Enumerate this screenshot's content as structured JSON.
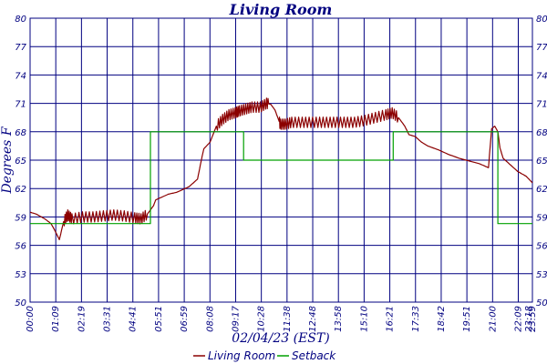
{
  "chart_data": {
    "type": "line",
    "title": "Living Room",
    "xlabel": "02/04/23 (EST)",
    "ylabel": "Degrees F",
    "ylim": [
      50,
      80
    ],
    "yticks": [
      50,
      53,
      56,
      59,
      62,
      65,
      68,
      71,
      74,
      77,
      80
    ],
    "ytick_labels": [
      "50",
      "53",
      "56",
      "59",
      "62",
      "65",
      "68",
      "71",
      "74",
      "77",
      "80"
    ],
    "xtick_labels": [
      "00:00",
      "01:09",
      "02:19",
      "03:31",
      "04:41",
      "05:51",
      "06:59",
      "08:08",
      "09:17",
      "10:28",
      "11:38",
      "12:48",
      "13:58",
      "15:10",
      "16:21",
      "17:33",
      "18:42",
      "19:51",
      "21:00",
      "22:09",
      "23:18",
      "23:59"
    ],
    "grid": true,
    "legend_position": "bottom",
    "colors": {
      "grid": "#000080",
      "living_room": "#8b0000",
      "setback": "#00a000",
      "text": "#000080"
    },
    "series": [
      {
        "name": "Living Room",
        "x": [
          0.0,
          0.3,
          0.7,
          1.0,
          1.2,
          1.4,
          1.6,
          1.8,
          2.0,
          2.5,
          3.0,
          3.5,
          4.0,
          4.5,
          5.0,
          5.3,
          5.6,
          5.9,
          6.0,
          6.3,
          6.6,
          7.0,
          7.3,
          7.6,
          8.0,
          8.2,
          8.3,
          8.6,
          8.9,
          9.2,
          9.5,
          9.8,
          10.0,
          10.3,
          10.6,
          11.0,
          11.3,
          11.5,
          11.7,
          11.85,
          11.95,
          12.2,
          12.5,
          13.0,
          13.5,
          14.0,
          14.5,
          15.0,
          15.5,
          16.0,
          16.5,
          17.0,
          17.3,
          17.6,
          17.9,
          18.1,
          18.4,
          18.7,
          19.0,
          19.5,
          20.0,
          20.5,
          21.0,
          21.5,
          21.9,
          22.05,
          22.2,
          22.35,
          22.45,
          22.6,
          22.9,
          23.3,
          23.7,
          24.0
        ],
        "y": [
          59.5,
          59.3,
          58.8,
          58.3,
          57.5,
          56.6,
          58.5,
          59.2,
          58.8,
          59.0,
          59.0,
          59.1,
          59.2,
          59.1,
          58.9,
          58.8,
          59.3,
          60.2,
          60.8,
          61.1,
          61.4,
          61.6,
          61.9,
          62.2,
          63.0,
          65.2,
          66.2,
          66.9,
          68.6,
          69.3,
          69.8,
          70.0,
          70.2,
          70.4,
          70.6,
          70.6,
          71.0,
          70.9,
          70.3,
          69.4,
          68.8,
          68.8,
          69.0,
          69.0,
          69.0,
          69.0,
          69.0,
          69.0,
          69.0,
          69.2,
          69.5,
          69.8,
          70.0,
          69.5,
          68.6,
          67.7,
          67.5,
          66.9,
          66.5,
          66.1,
          65.6,
          65.2,
          64.9,
          64.6,
          64.2,
          68.3,
          68.6,
          68.0,
          66.3,
          65.2,
          64.6,
          63.8,
          63.3,
          62.6
        ]
      },
      {
        "name": "Setback",
        "x": [
          0.0,
          5.75,
          5.75,
          10.2,
          10.2,
          17.35,
          17.35,
          22.35,
          22.35,
          24.0
        ],
        "y": [
          58.3,
          58.3,
          68.0,
          68.0,
          65.0,
          65.0,
          68.0,
          68.0,
          58.3,
          58.3
        ]
      }
    ]
  }
}
